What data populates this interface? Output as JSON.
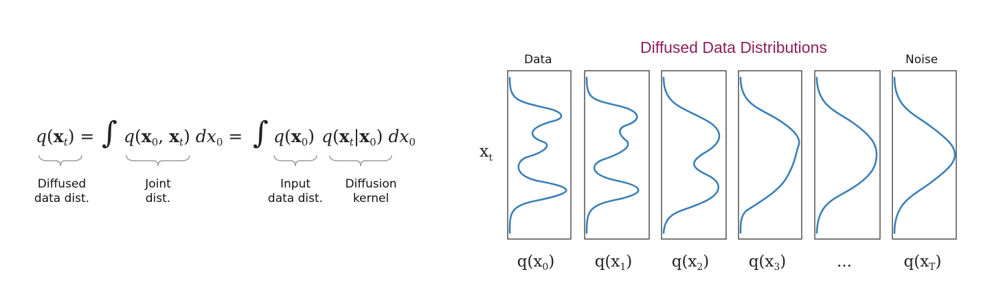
{
  "equation": {
    "lhs_fn": "q",
    "lhs_arg": "x",
    "lhs_sub": "t",
    "joint_arg_a": "x",
    "joint_sub_a": "0",
    "joint_arg_b": "x",
    "joint_sub_b": "t",
    "dx": "dx",
    "dx_sub": "0",
    "input_arg": "x",
    "input_sub": "0",
    "kernel_arg_a": "x",
    "kernel_sub_a": "t",
    "kernel_arg_b": "x",
    "kernel_sub_b": "0"
  },
  "labels": {
    "diffused": [
      "Diffused",
      "data dist."
    ],
    "joint": [
      "Joint",
      "dist."
    ],
    "input": [
      "Input",
      "data dist."
    ],
    "kernel": [
      "Diffusion",
      "kernel"
    ]
  },
  "figure": {
    "title": "Diffused Data Distributions",
    "top_left": "Data",
    "top_right": "Noise",
    "y_label": "x",
    "y_label_sub": "t",
    "curve_color": "#3a7fb6",
    "title_color": "#8b1f5c",
    "panels": [
      {
        "q": "q(x",
        "sub": "0",
        "close": ")"
      },
      {
        "q": "q(x",
        "sub": "1",
        "close": ")"
      },
      {
        "q": "q(x",
        "sub": "2",
        "close": ")"
      },
      {
        "q": "q(x",
        "sub": "3",
        "close": ")"
      },
      {
        "q": "...",
        "sub": "",
        "close": ""
      },
      {
        "q": "q(x",
        "sub": "T",
        "close": ")"
      }
    ]
  }
}
